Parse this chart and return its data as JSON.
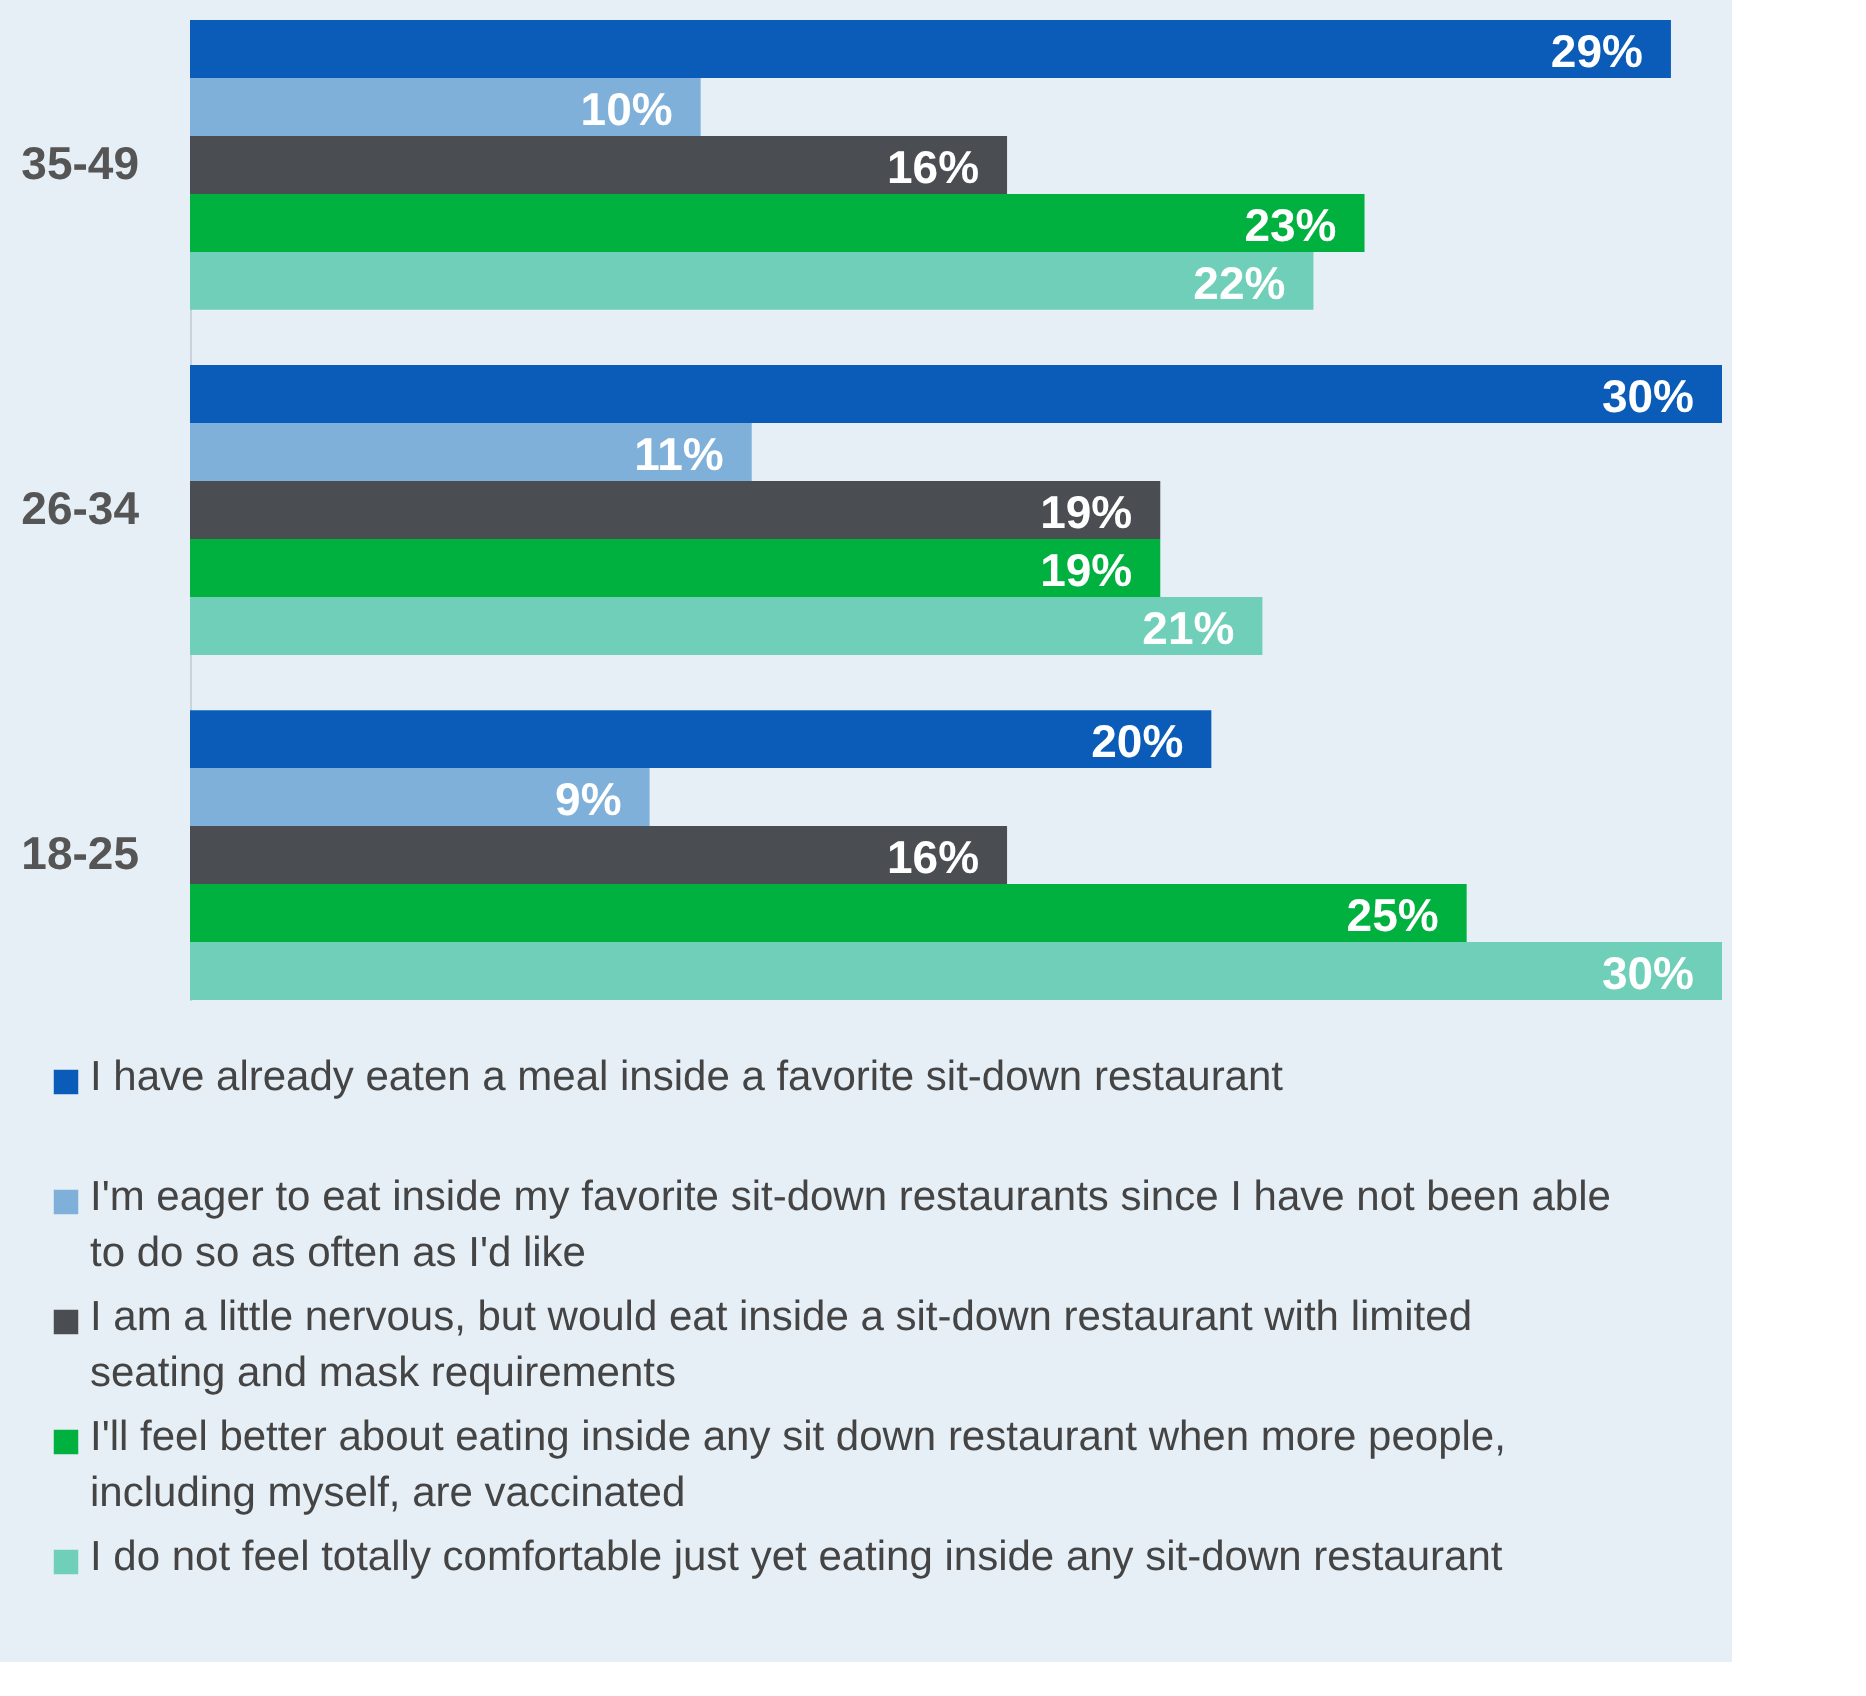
{
  "chart_data": {
    "type": "bar",
    "orientation": "horizontal",
    "categories": [
      "35-49",
      "26-34",
      "18-25"
    ],
    "series": [
      {
        "name": "I have already eaten a meal inside a favorite sit-down restaurant",
        "color": "#0a5cb8",
        "values": [
          29,
          30,
          20
        ],
        "value_labels": [
          "29%",
          "30%",
          "20%"
        ]
      },
      {
        "name": "I'm eager to eat inside my favorite sit-down restaurants since I have not been able to do so as often as I'd like",
        "color": "#7fb0d9",
        "values": [
          10,
          11,
          9
        ],
        "value_labels": [
          "10%",
          "11%",
          "9%"
        ]
      },
      {
        "name": "I am a little nervous, but would eat inside a sit-down restaurant with limited seating and mask requirements",
        "color": "#4a4d52",
        "values": [
          16,
          19,
          16
        ],
        "value_labels": [
          "16%",
          "19%",
          "16%"
        ]
      },
      {
        "name": "I'll feel better about eating inside any sit down restaurant when more people, including myself, are vaccinated",
        "color": "#00b140",
        "values": [
          23,
          19,
          25
        ],
        "value_labels": [
          "23%",
          "19%",
          "25%"
        ]
      },
      {
        "name": "I do not feel totally comfortable just yet eating inside any sit-down restaurant",
        "color": "#6fcfb8",
        "values": [
          22,
          21,
          30
        ],
        "value_labels": [
          "22%",
          "21%",
          "30%"
        ]
      }
    ],
    "legend": "bottom",
    "grid": false,
    "tick_labels": "y"
  }
}
